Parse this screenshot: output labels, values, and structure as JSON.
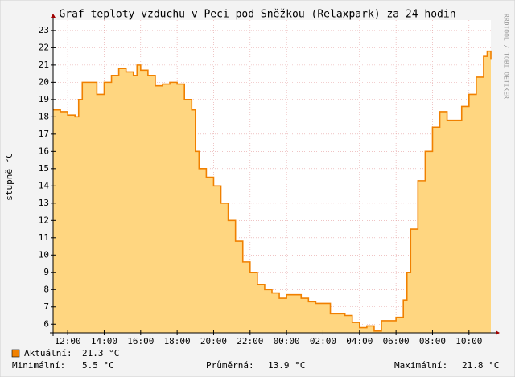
{
  "chart_data": {
    "type": "step-area",
    "title": "Graf teploty vzduchu v Peci pod Sněžkou (Relaxpark) za 24 hodin",
    "y_label": "stupně °C",
    "side_text": "RRDTOOL / TOBI OETIKER",
    "x": [
      11.2,
      11.6,
      12.0,
      12.4,
      12.6,
      12.8,
      13.2,
      13.6,
      14.0,
      14.4,
      14.8,
      15.2,
      15.6,
      15.8,
      16.0,
      16.4,
      16.8,
      17.2,
      17.6,
      18.0,
      18.4,
      18.8,
      19.0,
      19.2,
      19.6,
      20.0,
      20.4,
      20.8,
      21.2,
      21.6,
      22.0,
      22.4,
      22.8,
      23.2,
      23.6,
      24.0,
      24.4,
      24.8,
      25.2,
      25.6,
      26.0,
      26.4,
      26.8,
      27.2,
      27.6,
      28.0,
      28.4,
      28.8,
      29.2,
      29.6,
      30.0,
      30.4,
      30.6,
      30.8,
      31.2,
      31.6,
      32.0,
      32.4,
      32.8,
      33.2,
      33.6,
      34.0,
      34.4,
      34.8,
      35.0,
      35.2
    ],
    "series": [
      {
        "name": "Aktuální:",
        "color": "#f08000",
        "fill": "#ffd680",
        "values": [
          18.4,
          18.3,
          18.1,
          18.0,
          19.0,
          20.0,
          20.0,
          19.3,
          20.0,
          20.4,
          20.8,
          20.6,
          20.4,
          21.0,
          20.7,
          20.4,
          19.8,
          19.9,
          20.0,
          19.9,
          19.0,
          18.4,
          16.0,
          15.0,
          14.5,
          14.0,
          13.0,
          12.0,
          10.8,
          9.6,
          9.0,
          8.3,
          8.0,
          7.8,
          7.5,
          7.7,
          7.7,
          7.5,
          7.3,
          7.2,
          7.2,
          6.6,
          6.6,
          6.5,
          6.1,
          5.8,
          5.9,
          5.6,
          6.2,
          6.2,
          6.4,
          7.4,
          9.0,
          11.5,
          14.3,
          16.0,
          17.4,
          18.3,
          17.8,
          17.8,
          18.6,
          19.3,
          20.3,
          21.5,
          21.8,
          21.3
        ]
      }
    ],
    "xlim": [
      11.2,
      35.2
    ],
    "xticks": [
      {
        "value": 12,
        "label": "12:00"
      },
      {
        "value": 14,
        "label": "14:00"
      },
      {
        "value": 16,
        "label": "16:00"
      },
      {
        "value": 18,
        "label": "18:00"
      },
      {
        "value": 20,
        "label": "20:00"
      },
      {
        "value": 22,
        "label": "22:00"
      },
      {
        "value": 24,
        "label": "00:00"
      },
      {
        "value": 26,
        "label": "02:00"
      },
      {
        "value": 28,
        "label": "04:00"
      },
      {
        "value": 30,
        "label": "06:00"
      },
      {
        "value": 32,
        "label": "08:00"
      },
      {
        "value": 34,
        "label": "10:00"
      }
    ],
    "ylim": [
      5.5,
      23.6
    ],
    "yticks": [
      6,
      7,
      8,
      9,
      10,
      11,
      12,
      13,
      14,
      15,
      16,
      17,
      18,
      19,
      20,
      21,
      22,
      23
    ],
    "grid": true,
    "stats": [
      {
        "label": "Aktuální:",
        "value": "21.3 °C"
      },
      {
        "label": "Minimální:",
        "value": "5.5 °C"
      },
      {
        "label": "Průměrná:",
        "value": "13.9 °C"
      },
      {
        "label": "Maximální:",
        "value": "21.8 °C"
      }
    ]
  }
}
